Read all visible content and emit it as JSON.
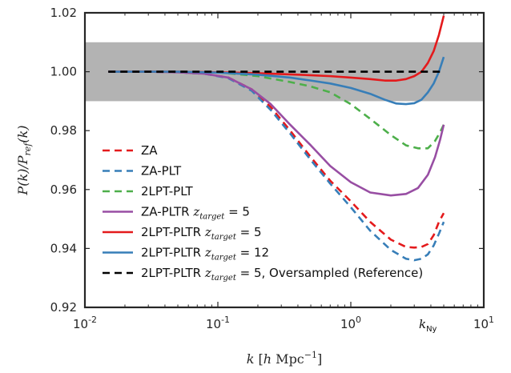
{
  "chart_data": {
    "type": "line",
    "xscale": "log",
    "xlim": [
      0.01,
      10
    ],
    "ylim": [
      0.92,
      1.02
    ],
    "xlabel": "k [h Mpc⁻¹]",
    "ylabel": "P(k)/P_ref(k)",
    "xticks": [
      {
        "value": 0.01,
        "base": "10",
        "exp": "-2"
      },
      {
        "value": 0.1,
        "base": "10",
        "exp": "-1"
      },
      {
        "value": 1,
        "base": "10",
        "exp": "0"
      },
      {
        "value": 10,
        "base": "10",
        "exp": "1"
      }
    ],
    "yticks": [
      {
        "value": 0.92,
        "label": "0.92"
      },
      {
        "value": 0.94,
        "label": "0.94"
      },
      {
        "value": 0.96,
        "label": "0.96"
      },
      {
        "value": 0.98,
        "label": "0.98"
      },
      {
        "value": 1.0,
        "label": "1.00"
      },
      {
        "value": 1.02,
        "label": "1.02"
      }
    ],
    "band": {
      "ymin": 0.99,
      "ymax": 1.01,
      "color": "#b3b3b3"
    },
    "annotation": {
      "text": "k",
      "sub": "Ny",
      "x": 3.8
    },
    "legend_position": "lower-left",
    "series": [
      {
        "name": "ZA",
        "color": "#e41a1c",
        "dash": "dashed",
        "x": [
          0.015,
          0.03,
          0.05,
          0.08,
          0.12,
          0.18,
          0.25,
          0.35,
          0.5,
          0.7,
          1.0,
          1.4,
          2.0,
          2.6,
          3.0,
          3.4,
          3.8,
          4.2,
          4.6,
          5.0
        ],
        "y": [
          1.0,
          1.0,
          0.9998,
          0.9993,
          0.998,
          0.994,
          0.988,
          0.98,
          0.971,
          0.963,
          0.956,
          0.949,
          0.943,
          0.9405,
          0.9403,
          0.9405,
          0.9415,
          0.9445,
          0.949,
          0.952
        ]
      },
      {
        "name": "ZA-PLT",
        "color": "#377eb8",
        "dash": "dashed",
        "x": [
          0.015,
          0.03,
          0.05,
          0.08,
          0.12,
          0.18,
          0.25,
          0.35,
          0.5,
          0.7,
          1.0,
          1.4,
          2.0,
          2.6,
          3.0,
          3.4,
          3.8,
          4.2,
          4.6,
          5.0
        ],
        "y": [
          1.0,
          1.0,
          0.9998,
          0.9993,
          0.9978,
          0.9935,
          0.987,
          0.979,
          0.97,
          0.962,
          0.954,
          0.946,
          0.9395,
          0.9365,
          0.936,
          0.9365,
          0.938,
          0.941,
          0.945,
          0.949
        ]
      },
      {
        "name": "2LPT-PLT",
        "color": "#4daf4a",
        "dash": "dashed",
        "x": [
          0.015,
          0.05,
          0.1,
          0.2,
          0.35,
          0.5,
          0.7,
          1.0,
          1.4,
          2.0,
          2.6,
          3.2,
          3.8,
          4.3,
          4.7,
          5.0
        ],
        "y": [
          1.0,
          1.0,
          0.9998,
          0.9985,
          0.9965,
          0.995,
          0.993,
          0.989,
          0.984,
          0.9785,
          0.975,
          0.974,
          0.974,
          0.9765,
          0.9795,
          0.982
        ]
      },
      {
        "name": "ZA-PLTR z_target = 5",
        "color": "#984ea3",
        "dash": "solid",
        "x": [
          0.015,
          0.03,
          0.05,
          0.08,
          0.12,
          0.18,
          0.25,
          0.35,
          0.5,
          0.7,
          1.0,
          1.4,
          2.0,
          2.6,
          3.2,
          3.8,
          4.3,
          4.7,
          5.0
        ],
        "y": [
          1.0,
          1.0,
          0.9998,
          0.9993,
          0.998,
          0.994,
          0.989,
          0.982,
          0.975,
          0.968,
          0.9625,
          0.959,
          0.958,
          0.9585,
          0.9605,
          0.965,
          0.971,
          0.977,
          0.982
        ]
      },
      {
        "name": "2LPT-PLTR z_target = 5",
        "color": "#e41a1c",
        "dash": "solid",
        "x": [
          0.015,
          0.05,
          0.1,
          0.2,
          0.4,
          0.7,
          1.0,
          1.4,
          1.8,
          2.2,
          2.6,
          3.0,
          3.4,
          3.8,
          4.2,
          4.6,
          5.0
        ],
        "y": [
          1.0,
          1.0,
          0.9998,
          0.9995,
          0.999,
          0.9985,
          0.998,
          0.9975,
          0.997,
          0.997,
          0.9975,
          0.9985,
          1.0,
          1.003,
          1.007,
          1.0125,
          1.019
        ]
      },
      {
        "name": "2LPT-PLTR z_target = 12",
        "color": "#377eb8",
        "dash": "solid",
        "x": [
          0.015,
          0.05,
          0.1,
          0.2,
          0.35,
          0.5,
          0.7,
          1.0,
          1.4,
          1.8,
          2.2,
          2.6,
          3.0,
          3.4,
          3.8,
          4.2,
          4.6,
          5.0
        ],
        "y": [
          1.0,
          1.0,
          0.9997,
          0.999,
          0.998,
          0.997,
          0.996,
          0.9945,
          0.9925,
          0.9905,
          0.9892,
          0.989,
          0.9893,
          0.9905,
          0.993,
          0.996,
          1.0,
          1.005
        ]
      },
      {
        "name": "2LPT-PLTR z_target = 5, Oversampled (Reference)",
        "color": "#000000",
        "dash": "dashed",
        "x": [
          0.015,
          0.1,
          1.0,
          5.0
        ],
        "y": [
          1.0,
          1.0,
          1.0,
          1.0
        ]
      }
    ]
  },
  "legend": [
    {
      "label": "ZA",
      "math": "",
      "suffix": ""
    },
    {
      "label": "ZA-PLT",
      "math": "",
      "suffix": ""
    },
    {
      "label": "2LPT-PLT",
      "math": "",
      "suffix": ""
    },
    {
      "label": "ZA-PLTR ",
      "math": "z",
      "sub": "target",
      "eq": " = 5",
      "suffix": ""
    },
    {
      "label": "2LPT-PLTR ",
      "math": "z",
      "sub": "target",
      "eq": " = 5",
      "suffix": ""
    },
    {
      "label": "2LPT-PLTR ",
      "math": "z",
      "sub": "target",
      "eq": " = 12",
      "suffix": ""
    },
    {
      "label": "2LPT-PLTR ",
      "math": "z",
      "sub": "target",
      "eq": " = 5",
      "suffix": ", Oversampled (Reference)"
    }
  ],
  "axis_text": {
    "x_main": "k",
    "x_unit_open": " [",
    "x_unit_h": "h",
    "x_unit_mpc": " Mpc",
    "x_unit_exp": "−1",
    "x_unit_close": "]",
    "y_num": "P(k)/P",
    "y_sub": "ref",
    "y_tail": "(k)"
  }
}
